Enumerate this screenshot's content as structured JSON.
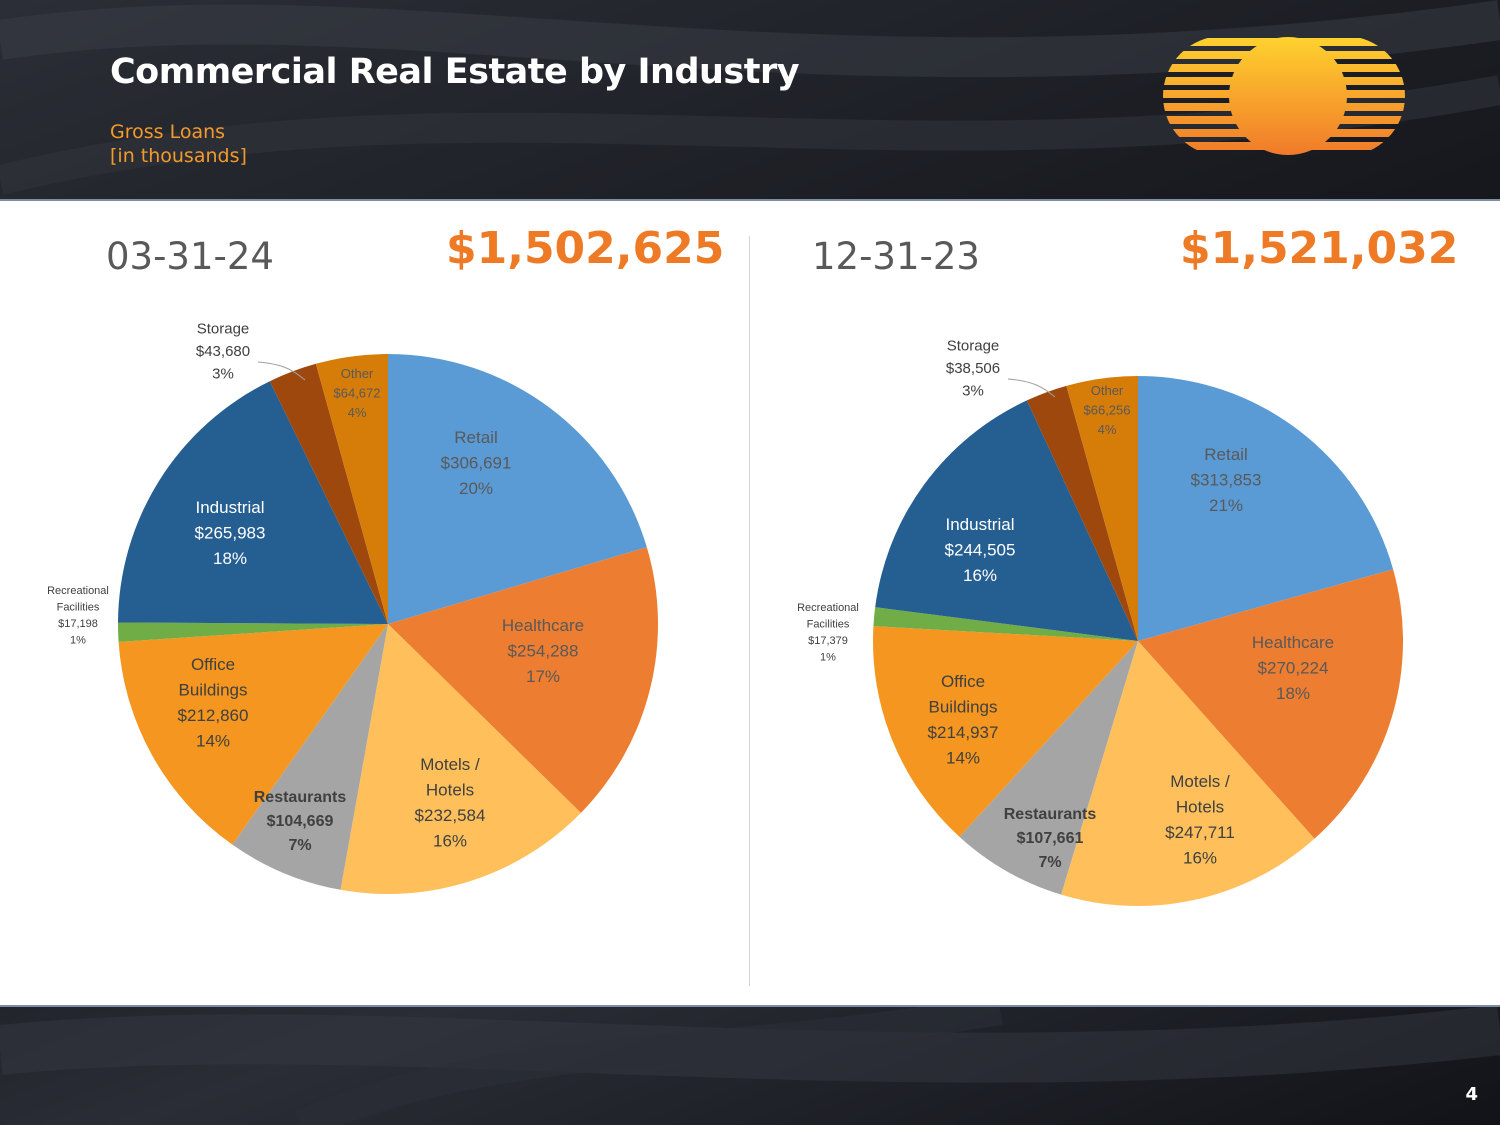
{
  "title": "Commercial Real Estate by Industry",
  "subtitle": {
    "line1": "Gross Loans",
    "line2": "[in thousands]"
  },
  "page_number": "4",
  "logo": {
    "name": "sunset-stripes-logo",
    "colors": [
      "#ffd22e",
      "#f07a2a"
    ]
  },
  "colors": {
    "accent": "#ee7a26",
    "retail": "#5b9bd5",
    "healthcare": "#ed7d31",
    "motels_hotels": "#ffc05c",
    "restaurants": "#a5a5a5",
    "office_buildings": "#f4961f",
    "recreational_facilities": "#70ad47",
    "industrial": "#255e91",
    "storage": "#9e480e",
    "other": "#d57d08"
  },
  "chart_data": [
    {
      "type": "pie",
      "title": "03-31-24",
      "total_label": "$1,502,625",
      "total": 1502625,
      "unit": "thousands USD",
      "slices": [
        {
          "key": "retail",
          "name": "Retail",
          "value": 306691,
          "value_label": "$306,691",
          "percent_label": "20%"
        },
        {
          "key": "healthcare",
          "name": "Healthcare",
          "value": 254288,
          "value_label": "$254,288",
          "percent_label": "17%"
        },
        {
          "key": "motels_hotels",
          "name": "Motels / Hotels",
          "value": 232584,
          "value_label": "$232,584",
          "percent_label": "16%"
        },
        {
          "key": "restaurants",
          "name": "Restaurants",
          "value": 104669,
          "value_label": "$104,669",
          "percent_label": "7%"
        },
        {
          "key": "office_buildings",
          "name": "Office Buildings",
          "value": 212860,
          "value_label": "$212,860",
          "percent_label": "14%"
        },
        {
          "key": "recreational_facilities",
          "name": "Recreational Facilities",
          "value": 17198,
          "value_label": "$17,198",
          "percent_label": "1%"
        },
        {
          "key": "industrial",
          "name": "Industrial",
          "value": 265983,
          "value_label": "$265,983",
          "percent_label": "18%"
        },
        {
          "key": "storage",
          "name": "Storage",
          "value": 43680,
          "value_label": "$43,680",
          "percent_label": "3%"
        },
        {
          "key": "other",
          "name": "Other",
          "value": 64672,
          "value_label": "$64,672",
          "percent_label": "4%"
        }
      ]
    },
    {
      "type": "pie",
      "title": "12-31-23",
      "total_label": "$1,521,032",
      "total": 1521032,
      "unit": "thousands USD",
      "slices": [
        {
          "key": "retail",
          "name": "Retail",
          "value": 313853,
          "value_label": "$313,853",
          "percent_label": "21%"
        },
        {
          "key": "healthcare",
          "name": "Healthcare",
          "value": 270224,
          "value_label": "$270,224",
          "percent_label": "18%"
        },
        {
          "key": "motels_hotels",
          "name": "Motels / Hotels",
          "value": 247711,
          "value_label": "$247,711",
          "percent_label": "16%"
        },
        {
          "key": "restaurants",
          "name": "Restaurants",
          "value": 107661,
          "value_label": "$107,661",
          "percent_label": "7%"
        },
        {
          "key": "office_buildings",
          "name": "Office Buildings",
          "value": 214937,
          "value_label": "$214,937",
          "percent_label": "14%"
        },
        {
          "key": "recreational_facilities",
          "name": "Recreational Facilities",
          "value": 17379,
          "value_label": "$17,379",
          "percent_label": "1%"
        },
        {
          "key": "industrial",
          "name": "Industrial",
          "value": 244505,
          "value_label": "$244,505",
          "percent_label": "16%"
        },
        {
          "key": "storage",
          "name": "Storage",
          "value": 38506,
          "value_label": "$38,506",
          "percent_label": "3%"
        },
        {
          "key": "other",
          "name": "Other",
          "value": 66256,
          "value_label": "$66,256",
          "percent_label": "4%"
        }
      ]
    }
  ]
}
